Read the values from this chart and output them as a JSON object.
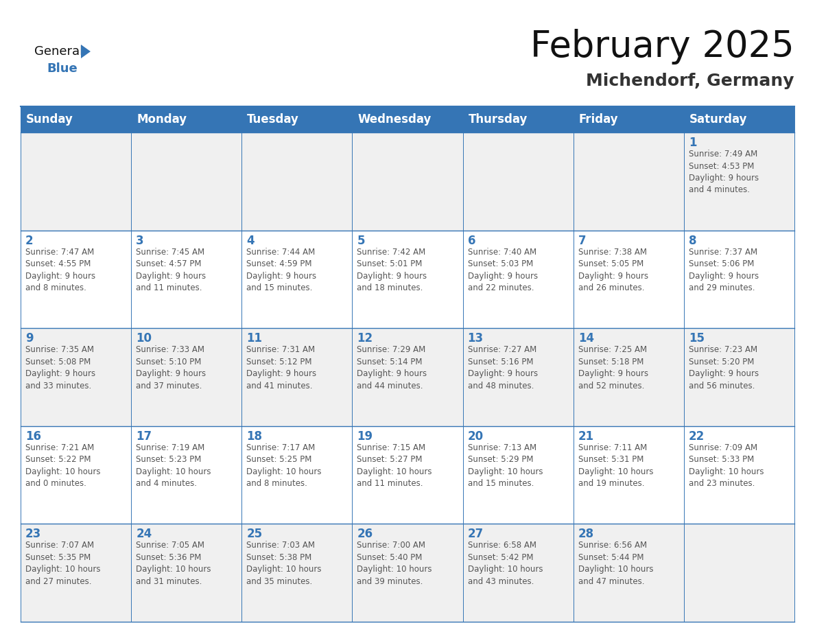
{
  "title": "February 2025",
  "subtitle": "Michendorf, Germany",
  "header_bg": "#3575B5",
  "header_text": "#FFFFFF",
  "cell_bg_row0": "#F0F0F0",
  "cell_bg_row1": "#FFFFFF",
  "day_headers": [
    "Sunday",
    "Monday",
    "Tuesday",
    "Wednesday",
    "Thursday",
    "Friday",
    "Saturday"
  ],
  "calendar": [
    [
      {
        "day": null,
        "info": null
      },
      {
        "day": null,
        "info": null
      },
      {
        "day": null,
        "info": null
      },
      {
        "day": null,
        "info": null
      },
      {
        "day": null,
        "info": null
      },
      {
        "day": null,
        "info": null
      },
      {
        "day": 1,
        "info": "Sunrise: 7:49 AM\nSunset: 4:53 PM\nDaylight: 9 hours\nand 4 minutes."
      }
    ],
    [
      {
        "day": 2,
        "info": "Sunrise: 7:47 AM\nSunset: 4:55 PM\nDaylight: 9 hours\nand 8 minutes."
      },
      {
        "day": 3,
        "info": "Sunrise: 7:45 AM\nSunset: 4:57 PM\nDaylight: 9 hours\nand 11 minutes."
      },
      {
        "day": 4,
        "info": "Sunrise: 7:44 AM\nSunset: 4:59 PM\nDaylight: 9 hours\nand 15 minutes."
      },
      {
        "day": 5,
        "info": "Sunrise: 7:42 AM\nSunset: 5:01 PM\nDaylight: 9 hours\nand 18 minutes."
      },
      {
        "day": 6,
        "info": "Sunrise: 7:40 AM\nSunset: 5:03 PM\nDaylight: 9 hours\nand 22 minutes."
      },
      {
        "day": 7,
        "info": "Sunrise: 7:38 AM\nSunset: 5:05 PM\nDaylight: 9 hours\nand 26 minutes."
      },
      {
        "day": 8,
        "info": "Sunrise: 7:37 AM\nSunset: 5:06 PM\nDaylight: 9 hours\nand 29 minutes."
      }
    ],
    [
      {
        "day": 9,
        "info": "Sunrise: 7:35 AM\nSunset: 5:08 PM\nDaylight: 9 hours\nand 33 minutes."
      },
      {
        "day": 10,
        "info": "Sunrise: 7:33 AM\nSunset: 5:10 PM\nDaylight: 9 hours\nand 37 minutes."
      },
      {
        "day": 11,
        "info": "Sunrise: 7:31 AM\nSunset: 5:12 PM\nDaylight: 9 hours\nand 41 minutes."
      },
      {
        "day": 12,
        "info": "Sunrise: 7:29 AM\nSunset: 5:14 PM\nDaylight: 9 hours\nand 44 minutes."
      },
      {
        "day": 13,
        "info": "Sunrise: 7:27 AM\nSunset: 5:16 PM\nDaylight: 9 hours\nand 48 minutes."
      },
      {
        "day": 14,
        "info": "Sunrise: 7:25 AM\nSunset: 5:18 PM\nDaylight: 9 hours\nand 52 minutes."
      },
      {
        "day": 15,
        "info": "Sunrise: 7:23 AM\nSunset: 5:20 PM\nDaylight: 9 hours\nand 56 minutes."
      }
    ],
    [
      {
        "day": 16,
        "info": "Sunrise: 7:21 AM\nSunset: 5:22 PM\nDaylight: 10 hours\nand 0 minutes."
      },
      {
        "day": 17,
        "info": "Sunrise: 7:19 AM\nSunset: 5:23 PM\nDaylight: 10 hours\nand 4 minutes."
      },
      {
        "day": 18,
        "info": "Sunrise: 7:17 AM\nSunset: 5:25 PM\nDaylight: 10 hours\nand 8 minutes."
      },
      {
        "day": 19,
        "info": "Sunrise: 7:15 AM\nSunset: 5:27 PM\nDaylight: 10 hours\nand 11 minutes."
      },
      {
        "day": 20,
        "info": "Sunrise: 7:13 AM\nSunset: 5:29 PM\nDaylight: 10 hours\nand 15 minutes."
      },
      {
        "day": 21,
        "info": "Sunrise: 7:11 AM\nSunset: 5:31 PM\nDaylight: 10 hours\nand 19 minutes."
      },
      {
        "day": 22,
        "info": "Sunrise: 7:09 AM\nSunset: 5:33 PM\nDaylight: 10 hours\nand 23 minutes."
      }
    ],
    [
      {
        "day": 23,
        "info": "Sunrise: 7:07 AM\nSunset: 5:35 PM\nDaylight: 10 hours\nand 27 minutes."
      },
      {
        "day": 24,
        "info": "Sunrise: 7:05 AM\nSunset: 5:36 PM\nDaylight: 10 hours\nand 31 minutes."
      },
      {
        "day": 25,
        "info": "Sunrise: 7:03 AM\nSunset: 5:38 PM\nDaylight: 10 hours\nand 35 minutes."
      },
      {
        "day": 26,
        "info": "Sunrise: 7:00 AM\nSunset: 5:40 PM\nDaylight: 10 hours\nand 39 minutes."
      },
      {
        "day": 27,
        "info": "Sunrise: 6:58 AM\nSunset: 5:42 PM\nDaylight: 10 hours\nand 43 minutes."
      },
      {
        "day": 28,
        "info": "Sunrise: 6:56 AM\nSunset: 5:44 PM\nDaylight: 10 hours\nand 47 minutes."
      },
      {
        "day": null,
        "info": null
      }
    ]
  ],
  "logo_general_color": "#111111",
  "logo_blue_color": "#3575B5",
  "logo_triangle_color": "#3575B5",
  "border_color": "#3575B5",
  "day_num_color": "#3575B5",
  "info_text_color": "#555555",
  "info_font_size": 8.5,
  "day_num_font_size": 12,
  "header_font_size": 12,
  "title_font_size": 38,
  "subtitle_font_size": 18,
  "fig_width": 11.88,
  "fig_height": 9.18,
  "dpi": 100
}
